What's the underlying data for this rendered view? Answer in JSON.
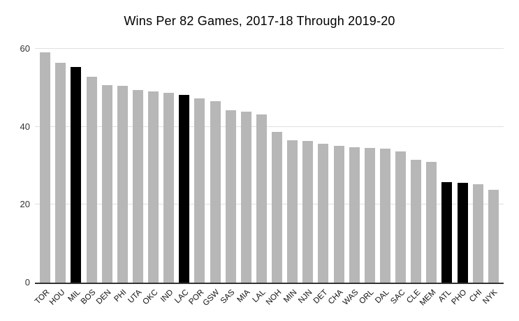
{
  "chart_data": {
    "type": "bar",
    "title": "Wins Per 82 Games, 2017-18 Through 2019-20",
    "xlabel": "",
    "ylabel": "",
    "categories": [
      "TOR",
      "HOU",
      "MIL",
      "BOS",
      "DEN",
      "PHI",
      "UTA",
      "OKC",
      "IND",
      "LAC",
      "POR",
      "GSW",
      "SAS",
      "MIA",
      "LAL",
      "NOH",
      "MIN",
      "NJN",
      "DET",
      "CHA",
      "WAS",
      "ORL",
      "DAL",
      "SAC",
      "CLE",
      "MEM",
      "ATL",
      "PHO",
      "CHI",
      "NYK"
    ],
    "values": [
      59.1,
      56.4,
      55.4,
      52.8,
      50.6,
      50.5,
      49.4,
      49.0,
      48.8,
      48.2,
      47.2,
      46.5,
      44.3,
      43.8,
      43.2,
      38.6,
      36.6,
      36.4,
      35.6,
      35.1,
      34.8,
      34.5,
      34.4,
      33.6,
      31.5,
      30.9,
      25.8,
      25.6,
      25.3,
      23.8
    ],
    "highlighted_categories": [
      "MIL",
      "LAC",
      "ATL",
      "PHO"
    ],
    "ylim": [
      0,
      60
    ],
    "yticks": [
      0,
      20,
      40,
      60
    ],
    "grid": true,
    "legend_position": "none",
    "colors": {
      "bar_default": "#b7b7b7",
      "bar_highlight": "#000000",
      "gridline": "#e0e0e0",
      "axis_line": "#333333",
      "title_text": "#000000",
      "tick_text": "#111111",
      "background": "#ffffff"
    }
  }
}
